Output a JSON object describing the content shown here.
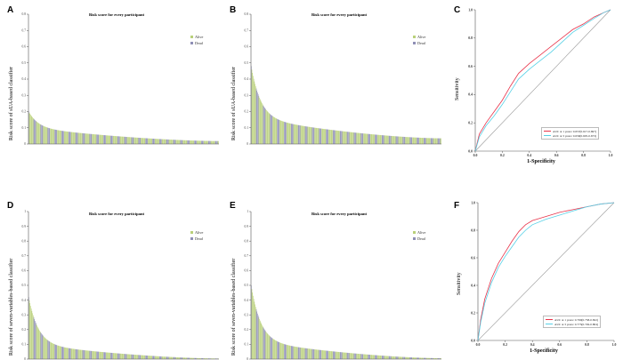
{
  "colors": {
    "alive": "#b9d07a",
    "dead": "#8f8fb6",
    "auc_1yr": "#e8334a",
    "auc_3yr": "#56d0e6",
    "axis": "#555555",
    "diagonal": "#999999"
  },
  "panels": {
    "A": {
      "label": "A",
      "title": "Risk score for every participant",
      "ylabel": "Risk score of sUA-based classifier",
      "legend_alive": "Alive",
      "legend_dead": "Dead"
    },
    "B": {
      "label": "B",
      "title": "Risk score for every participant",
      "ylabel": "Risk score of sUA-based classifier",
      "legend_alive": "Alive",
      "legend_dead": "Dead"
    },
    "C": {
      "label": "C",
      "xlabel": "1-Specificity",
      "ylabel": "Sensitivity",
      "legend_1yr": "AUC at 1 years: 0.657(0.617-0.697)",
      "legend_3yr": "AUC at 3 years: 0.639(0.605-0.673)"
    },
    "D": {
      "label": "D",
      "title": "Risk score for every participant",
      "ylabel": "Risk score of seven-variables-based classifier",
      "legend_alive": "Alive",
      "legend_dead": "Dead"
    },
    "E": {
      "label": "E",
      "title": "Risk score for every participant",
      "ylabel": "Risk score of seven-variables-based classifier",
      "legend_alive": "Alive",
      "legend_dead": "Dead"
    },
    "F": {
      "label": "F",
      "xlabel": "1-Specificity",
      "ylabel": "Sensitivity",
      "legend_1yr": "AUC at 1 years: 0.790(0.758-0.822)",
      "legend_3yr": "AUC at 3 years: 0.773(0.749-0.804)"
    }
  },
  "chart_data": [
    {
      "panel": "A",
      "type": "bar",
      "title": "Risk score for every participant",
      "xlabel": "",
      "ylabel": "Risk score of sUA-based classifier",
      "ylim": [
        0,
        0.8
      ],
      "yticks": [
        "0",
        "0.1",
        "0.2",
        "0.3",
        "0.4",
        "0.5",
        "0.6",
        "0.7",
        "0.8"
      ],
      "curve": {
        "start": 0.2,
        "knee": 0.1,
        "end": 0.018
      },
      "n_bars": 300,
      "legend": [
        "Alive",
        "Dead"
      ]
    },
    {
      "panel": "B",
      "type": "bar",
      "title": "Risk score for every participant",
      "xlabel": "",
      "ylabel": "Risk score of sUA-based classifier",
      "ylim": [
        0,
        0.8
      ],
      "yticks": [
        "0",
        "0.1",
        "0.2",
        "0.3",
        "0.4",
        "0.5",
        "0.6",
        "0.7",
        "0.8"
      ],
      "curve": {
        "start": 0.48,
        "knee": 0.16,
        "end": 0.035
      },
      "n_bars": 300,
      "legend": [
        "Alive",
        "Dead"
      ]
    },
    {
      "panel": "C",
      "type": "line",
      "xlabel": "1-Specificity",
      "ylabel": "Sensitivity",
      "xlim": [
        0,
        1
      ],
      "ylim": [
        0,
        1
      ],
      "xticks": [
        "0.0",
        "0.2",
        "0.4",
        "0.6",
        "0.8",
        "1.0"
      ],
      "yticks": [
        "0.0",
        "0.2",
        "0.4",
        "0.6",
        "0.8",
        "1.0"
      ],
      "series": [
        {
          "name": "AUC at 1 years: 0.657(0.617-0.697)",
          "x": [
            0,
            0.03,
            0.08,
            0.14,
            0.2,
            0.26,
            0.32,
            0.4,
            0.48,
            0.56,
            0.64,
            0.72,
            0.8,
            0.88,
            0.95,
            1
          ],
          "y": [
            0,
            0.12,
            0.2,
            0.28,
            0.36,
            0.46,
            0.55,
            0.62,
            0.68,
            0.74,
            0.8,
            0.86,
            0.9,
            0.95,
            0.98,
            1
          ]
        },
        {
          "name": "AUC at 3 years: 0.639(0.605-0.673)",
          "x": [
            0,
            0.03,
            0.08,
            0.14,
            0.2,
            0.26,
            0.32,
            0.4,
            0.48,
            0.56,
            0.64,
            0.72,
            0.8,
            0.88,
            0.95,
            1
          ],
          "y": [
            0,
            0.1,
            0.18,
            0.25,
            0.33,
            0.42,
            0.51,
            0.58,
            0.64,
            0.7,
            0.77,
            0.84,
            0.89,
            0.94,
            0.98,
            1
          ]
        }
      ]
    },
    {
      "panel": "D",
      "type": "bar",
      "title": "Risk score for every participant",
      "xlabel": "",
      "ylabel": "Risk score of seven-variables-based classifier",
      "ylim": [
        0,
        1
      ],
      "yticks": [
        "0",
        "0.1",
        "0.2",
        "0.3",
        "0.4",
        "0.5",
        "0.6",
        "0.7",
        "0.8",
        "0.9",
        "1"
      ],
      "curve": {
        "start": 0.42,
        "knee": 0.1,
        "end": 0.004
      },
      "n_bars": 300,
      "legend": [
        "Alive",
        "Dead"
      ]
    },
    {
      "panel": "E",
      "type": "bar",
      "title": "Risk score for every participant",
      "xlabel": "",
      "ylabel": "Risk score of seven-variables-based classifier",
      "ylim": [
        0,
        1
      ],
      "yticks": [
        "0",
        "0.1",
        "0.2",
        "0.3",
        "0.4",
        "0.5",
        "0.6",
        "0.7",
        "0.8",
        "0.9",
        "1"
      ],
      "curve": {
        "start": 0.5,
        "knee": 0.12,
        "end": 0.006
      },
      "n_bars": 300,
      "legend": [
        "Alive",
        "Dead"
      ]
    },
    {
      "panel": "F",
      "type": "line",
      "xlabel": "1-Specificity",
      "ylabel": "Sensitivity",
      "xlim": [
        0,
        1
      ],
      "ylim": [
        0,
        1
      ],
      "xticks": [
        "0.0",
        "0.2",
        "0.4",
        "0.6",
        "0.8",
        "1.0"
      ],
      "yticks": [
        "0.0",
        "0.2",
        "0.4",
        "0.6",
        "0.8",
        "1.0"
      ],
      "series": [
        {
          "name": "AUC at 1 years: 0.790(0.758-0.822)",
          "x": [
            0,
            0.02,
            0.05,
            0.1,
            0.15,
            0.2,
            0.25,
            0.3,
            0.35,
            0.4,
            0.5,
            0.6,
            0.7,
            0.8,
            0.9,
            1
          ],
          "y": [
            0,
            0.15,
            0.3,
            0.45,
            0.56,
            0.64,
            0.72,
            0.79,
            0.84,
            0.87,
            0.9,
            0.93,
            0.95,
            0.97,
            0.99,
            1
          ]
        },
        {
          "name": "AUC at 3 years: 0.773(0.749-0.804)",
          "x": [
            0,
            0.02,
            0.05,
            0.1,
            0.15,
            0.2,
            0.25,
            0.3,
            0.35,
            0.4,
            0.5,
            0.6,
            0.7,
            0.8,
            0.9,
            1
          ],
          "y": [
            0,
            0.13,
            0.27,
            0.42,
            0.53,
            0.61,
            0.68,
            0.75,
            0.8,
            0.84,
            0.88,
            0.91,
            0.94,
            0.97,
            0.99,
            1
          ]
        }
      ]
    }
  ]
}
